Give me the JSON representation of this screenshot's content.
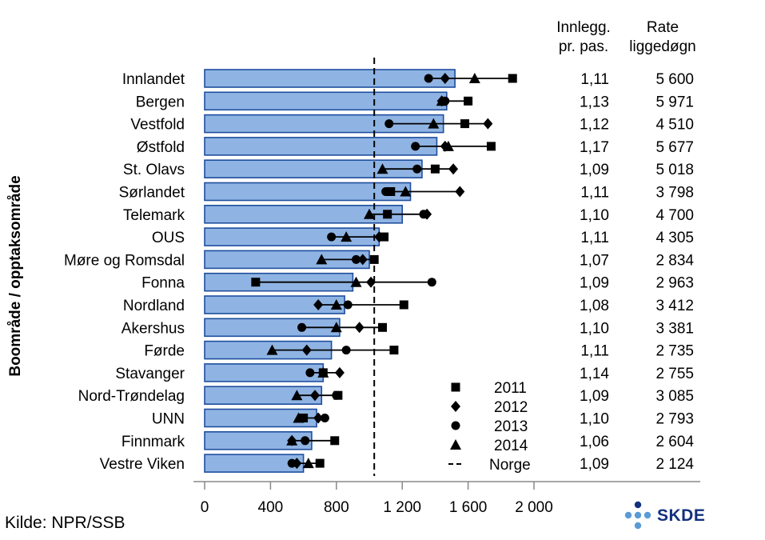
{
  "chart_data": {
    "type": "bar",
    "ylabel": "Boområde / opptaksområde",
    "xlim": [
      0,
      2000
    ],
    "xticks": [
      0,
      400,
      800,
      1200,
      1600,
      2000
    ],
    "xtick_labels": [
      "0",
      "400",
      "800",
      "1 200",
      "1 600",
      "2 000"
    ],
    "reference_line": {
      "name": "Norge",
      "value": 1030
    },
    "col_headers": [
      {
        "line1": "Innlegg.",
        "line2": "pr. pas."
      },
      {
        "line1": "Rate",
        "line2": "liggedøgn"
      }
    ],
    "categories": [
      "Innlandet",
      "Bergen",
      "Vestfold",
      "Østfold",
      "St. Olavs",
      "Sørlandet",
      "Telemark",
      "OUS",
      "Møre og Romsdal",
      "Fonna",
      "Nordland",
      "Akershus",
      "Førde",
      "Stavanger",
      "Nord-Trøndelag",
      "UNN",
      "Finnmark",
      "Vestre Viken"
    ],
    "values": [
      1520,
      1470,
      1450,
      1410,
      1320,
      1250,
      1200,
      1060,
      1000,
      900,
      850,
      820,
      770,
      720,
      710,
      680,
      650,
      600
    ],
    "markers": [
      {
        "name": "2011",
        "shape": "square",
        "values": [
          1870,
          1600,
          1580,
          1740,
          1400,
          1130,
          1110,
          1090,
          1030,
          310,
          1210,
          1080,
          1150,
          720,
          810,
          600,
          790,
          700
        ]
      },
      {
        "name": "2012",
        "shape": "diamond",
        "values": [
          1460,
          1440,
          1720,
          1460,
          1510,
          1550,
          1350,
          1060,
          960,
          1010,
          690,
          940,
          620,
          820,
          670,
          690,
          530,
          560
        ]
      },
      {
        "name": "2013",
        "shape": "circle",
        "values": [
          1360,
          1460,
          1120,
          1280,
          1290,
          1100,
          1330,
          770,
          920,
          1380,
          870,
          590,
          860,
          640,
          800,
          730,
          610,
          530
        ]
      },
      {
        "name": "2014",
        "shape": "triangle",
        "values": [
          1640,
          1440,
          1390,
          1480,
          1080,
          1220,
          1000,
          860,
          710,
          920,
          800,
          800,
          410,
          720,
          560,
          570,
          530,
          630
        ]
      }
    ],
    "innlegg_pr_pas": [
      "1,11",
      "1,13",
      "1,12",
      "1,17",
      "1,09",
      "1,11",
      "1,10",
      "1,11",
      "1,07",
      "1,09",
      "1,08",
      "1,10",
      "1,11",
      "1,14",
      "1,09",
      "1,10",
      "1,06",
      "1,09"
    ],
    "rate_liggedogn": [
      "5 600",
      "5 971",
      "4 510",
      "5 677",
      "5 018",
      "3 798",
      "4 700",
      "4 305",
      "2 834",
      "2 963",
      "3 412",
      "3 381",
      "2 735",
      "2 755",
      "3 085",
      "2 793",
      "2 604",
      "2 124"
    ],
    "colors": {
      "bar_fill": "#8fb4e3",
      "bar_stroke": "#1f4e9e",
      "markers": "#000000"
    }
  },
  "source": "Kilde: NPR/SSB",
  "logo": {
    "text": "SKDE",
    "dot_dark": "#13307e",
    "dot_light": "#5b9bd5"
  }
}
